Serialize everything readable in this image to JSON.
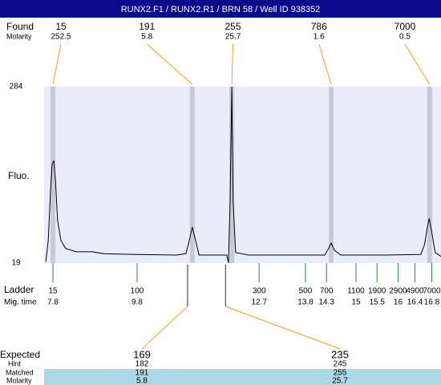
{
  "header": {
    "title": "RUNX2.F1 / RUNX2.R1 / BRN 58 / Well ID 938352"
  },
  "chart_data": {
    "type": "line",
    "ylabel": "Fluo.",
    "ylim": [
      19,
      284
    ],
    "yticks": [
      19,
      284
    ],
    "xlim": [
      7.59,
      17.02
    ],
    "color": "#000000",
    "x": [
      7.63,
      7.69,
      7.74,
      7.78,
      7.82,
      7.86,
      7.91,
      7.99,
      8.1,
      8.35,
      8.73,
      9.02,
      9.78,
      10.73,
      10.96,
      11.04,
      11.11,
      11.19,
      11.27,
      11.69,
      11.93,
      11.97,
      12.01,
      12.05,
      12.08,
      12.14,
      12.45,
      13.21,
      14.26,
      14.35,
      14.41,
      14.49,
      14.64,
      15.69,
      16.54,
      16.63,
      16.69,
      16.74,
      16.8,
      16.88,
      17.02
    ],
    "values": [
      21,
      53,
      125,
      167,
      173,
      143,
      83,
      53,
      41,
      36,
      36,
      33,
      32,
      31,
      33,
      53,
      73,
      53,
      31,
      31,
      31,
      19,
      113,
      284,
      113,
      35,
      31,
      31,
      31,
      41,
      49,
      38,
      31,
      31,
      32,
      47,
      71,
      86,
      65,
      35,
      29
    ],
    "found": {
      "label": "Found",
      "sublabel": "Molarity",
      "sizes": [
        15,
        191,
        255,
        786,
        7000
      ],
      "times": [
        7.8,
        11.11,
        12.05,
        14.41,
        16.75
      ],
      "molarity": [
        252.5,
        5.8,
        25.7,
        1.6,
        0.5
      ]
    },
    "ladder": {
      "label": "Ladder",
      "sublabel": "Mig. time",
      "sizes": [
        15,
        100,
        300,
        500,
        700,
        1100,
        1900,
        2900,
        4900,
        7000
      ],
      "times": [
        7.8,
        9.8,
        12.7,
        13.8,
        14.3,
        15,
        15.5,
        16,
        16.4,
        16.8
      ]
    },
    "expected": {
      "label": "Expected",
      "hint_label": "Hint",
      "matched_label": "Matched",
      "molarity_label": "Molarity",
      "times": [
        11.0,
        11.9
      ],
      "sizes": [
        169,
        235
      ],
      "hint": [
        182,
        245
      ],
      "matched": [
        191,
        255
      ],
      "molarity": [
        5.8,
        25.7
      ]
    }
  }
}
